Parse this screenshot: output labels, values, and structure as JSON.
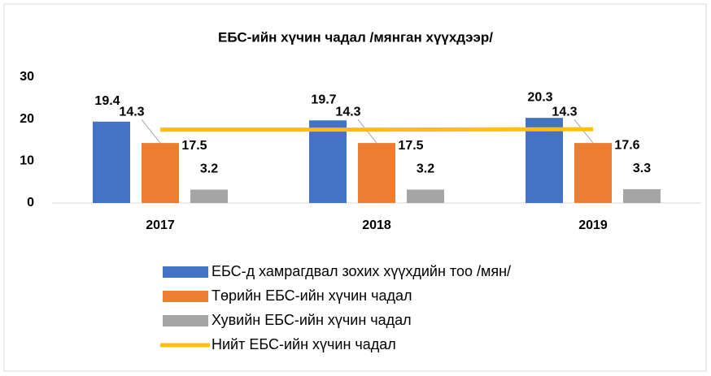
{
  "chart_data": {
    "type": "bar",
    "title": "ЕБС-ийн хүчин чадал /мянган хүүхдээр/",
    "categories": [
      "2017",
      "2018",
      "2019"
    ],
    "series": [
      {
        "name": "ЕБС-д хамрагдвал зохих хүүхдийн тоо /мян/",
        "color": "#4472c4",
        "values": [
          19.4,
          19.7,
          20.3
        ]
      },
      {
        "name": "Төрийн ЕБС-ийн хүчин чадал",
        "color": "#ed7d31",
        "values": [
          14.3,
          14.3,
          14.3
        ]
      },
      {
        "name": "Хувийн ЕБС-ийн хүчин чадал",
        "color": "#a5a5a5",
        "values": [
          3.2,
          3.2,
          3.3
        ]
      },
      {
        "name": "Нийт ЕБС-ийн хүчин чадал",
        "color": "#ffc000",
        "values": [
          17.5,
          17.5,
          17.6
        ],
        "type": "line"
      }
    ],
    "ylim": [
      0,
      30
    ],
    "yticks": [
      0,
      10,
      20,
      30
    ],
    "grid": false,
    "legend": "bottom"
  }
}
